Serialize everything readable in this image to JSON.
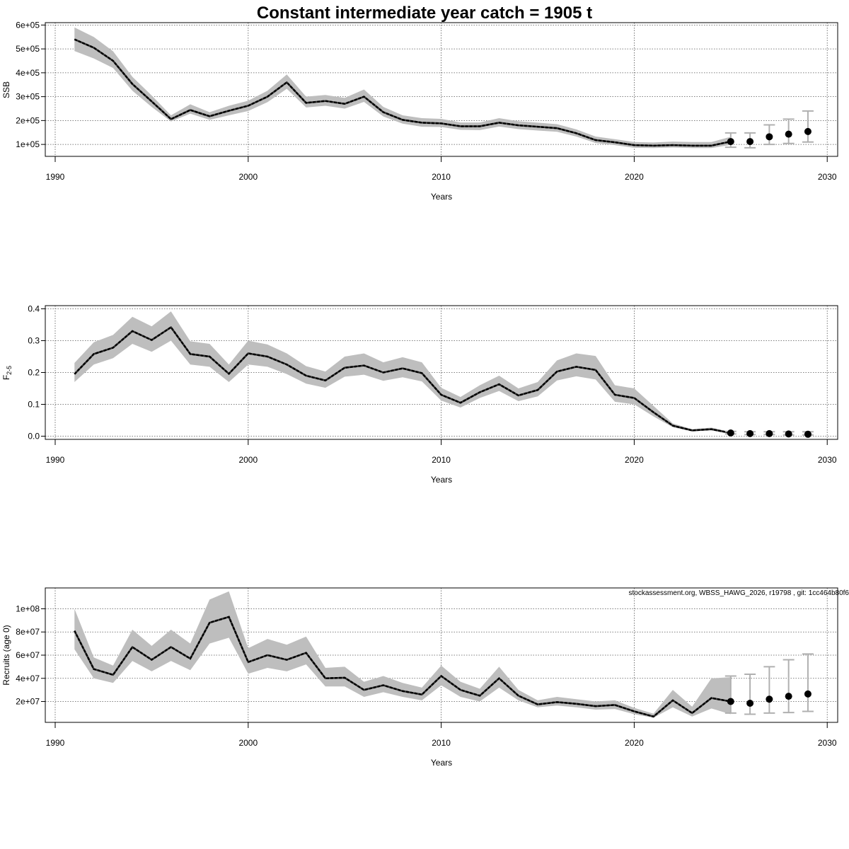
{
  "chart_data": [
    {
      "type": "line",
      "title": "Constant intermediate year catch = 1905 t",
      "xlabel": "Years",
      "ylabel": "SSB",
      "xlim": [
        1990,
        2030
      ],
      "ylim": [
        50000,
        610000
      ],
      "grid": true,
      "x_ticks": [
        1990,
        2000,
        2010,
        2020,
        2030
      ],
      "x_tick_labels": [
        "1990",
        "2000",
        "2010",
        "2020",
        "2030"
      ],
      "y_ticks": [
        100000,
        200000,
        300000,
        400000,
        500000,
        600000
      ],
      "y_tick_labels": [
        "1e+05",
        "2e+05",
        "3e+05",
        "4e+05",
        "5e+05",
        "6e+05"
      ],
      "years": [
        1991,
        1992,
        1993,
        1994,
        1995,
        1996,
        1997,
        1998,
        1999,
        2000,
        2001,
        2002,
        2003,
        2004,
        2005,
        2006,
        2007,
        2008,
        2009,
        2010,
        2011,
        2012,
        2013,
        2014,
        2015,
        2016,
        2017,
        2018,
        2019,
        2020,
        2021,
        2022,
        2023,
        2024,
        2025
      ],
      "estimate": [
        540000,
        505000,
        450000,
        353000,
        280000,
        206000,
        244000,
        218000,
        241000,
        262000,
        300000,
        360000,
        274000,
        282000,
        270000,
        300000,
        235000,
        203000,
        191000,
        188000,
        176000,
        176000,
        191000,
        180000,
        174000,
        168000,
        147000,
        118000,
        109000,
        97000,
        95000,
        97000,
        95000,
        95000,
        112000
      ],
      "ci_low": [
        491000,
        460000,
        420000,
        325000,
        257000,
        196000,
        229000,
        203000,
        222000,
        240000,
        277000,
        333000,
        255000,
        262000,
        250000,
        278000,
        217000,
        187000,
        174000,
        173000,
        161000,
        160000,
        175000,
        164000,
        158000,
        153000,
        133000,
        106000,
        97000,
        86000,
        85000,
        87000,
        85000,
        85000,
        98000
      ],
      "ci_high": [
        590000,
        550000,
        490000,
        383000,
        305000,
        222000,
        268000,
        235000,
        262000,
        283000,
        325000,
        393000,
        300000,
        307000,
        295000,
        330000,
        257000,
        222000,
        210000,
        207000,
        192000,
        192000,
        210000,
        197000,
        191000,
        185000,
        163000,
        133000,
        122000,
        110000,
        108000,
        112000,
        110000,
        110000,
        132000
      ],
      "forecast": {
        "years": [
          2025,
          2026,
          2027,
          2028,
          2029
        ],
        "median": [
          112000,
          112000,
          132000,
          143000,
          154000
        ],
        "low": [
          88000,
          86000,
          100000,
          104000,
          110000
        ],
        "high": [
          148000,
          148000,
          182000,
          206000,
          240000
        ]
      }
    },
    {
      "type": "line",
      "xlabel": "Years",
      "ylabel": "F",
      "ylabel_subscript": "2-5",
      "xlim": [
        1990,
        2030
      ],
      "ylim": [
        -0.01,
        0.41
      ],
      "grid": true,
      "x_ticks": [
        1990,
        2000,
        2010,
        2020,
        2030
      ],
      "x_tick_labels": [
        "1990",
        "2000",
        "2010",
        "2020",
        "2030"
      ],
      "y_ticks": [
        0,
        0.1,
        0.2,
        0.3,
        0.4
      ],
      "y_tick_labels": [
        "0.0",
        "0.1",
        "0.2",
        "0.3",
        "0.4"
      ],
      "years": [
        1991,
        1992,
        1993,
        1994,
        1995,
        1996,
        1997,
        1998,
        1999,
        2000,
        2001,
        2002,
        2003,
        2004,
        2005,
        2006,
        2007,
        2008,
        2009,
        2010,
        2011,
        2012,
        2013,
        2014,
        2015,
        2016,
        2017,
        2018,
        2019,
        2020,
        2021,
        2022,
        2023,
        2024,
        2025
      ],
      "estimate": [
        0.195,
        0.258,
        0.278,
        0.33,
        0.302,
        0.342,
        0.258,
        0.25,
        0.196,
        0.26,
        0.25,
        0.225,
        0.19,
        0.175,
        0.215,
        0.222,
        0.2,
        0.213,
        0.198,
        0.13,
        0.105,
        0.138,
        0.163,
        0.128,
        0.145,
        0.203,
        0.218,
        0.208,
        0.13,
        0.12,
        0.075,
        0.033,
        0.018,
        0.022,
        0.01
      ],
      "ci_low": [
        0.17,
        0.225,
        0.245,
        0.29,
        0.265,
        0.3,
        0.225,
        0.218,
        0.17,
        0.225,
        0.218,
        0.195,
        0.165,
        0.152,
        0.187,
        0.193,
        0.174,
        0.185,
        0.172,
        0.112,
        0.09,
        0.12,
        0.142,
        0.11,
        0.125,
        0.175,
        0.188,
        0.178,
        0.108,
        0.1,
        0.062,
        0.028,
        0.015,
        0.018,
        0.007
      ],
      "ci_high": [
        0.23,
        0.295,
        0.318,
        0.375,
        0.345,
        0.392,
        0.298,
        0.29,
        0.225,
        0.3,
        0.288,
        0.26,
        0.22,
        0.203,
        0.25,
        0.26,
        0.232,
        0.248,
        0.232,
        0.152,
        0.123,
        0.16,
        0.19,
        0.15,
        0.17,
        0.238,
        0.26,
        0.252,
        0.16,
        0.15,
        0.095,
        0.04,
        0.022,
        0.027,
        0.013
      ],
      "forecast": {
        "years": [
          2025,
          2026,
          2027,
          2028,
          2029
        ],
        "median": [
          0.01,
          0.008,
          0.008,
          0.007,
          0.006
        ],
        "low": [
          0.007,
          0.005,
          0.005,
          0.004,
          0.004
        ],
        "high": [
          0.015,
          0.014,
          0.014,
          0.014,
          0.014
        ]
      }
    },
    {
      "type": "line",
      "xlabel": "Years",
      "ylabel": "Recruits (age 0)",
      "xlim": [
        1990,
        2030
      ],
      "ylim": [
        2000000,
        118000000
      ],
      "grid": true,
      "x_ticks": [
        1990,
        2000,
        2010,
        2020,
        2030
      ],
      "x_tick_labels": [
        "1990",
        "2000",
        "2010",
        "2020",
        "2030"
      ],
      "y_ticks": [
        20000000,
        40000000,
        60000000,
        80000000,
        100000000
      ],
      "y_tick_labels": [
        "2e+07",
        "4e+07",
        "6e+07",
        "8e+07",
        "1e+08"
      ],
      "years": [
        1991,
        1992,
        1993,
        1994,
        1995,
        1996,
        1997,
        1998,
        1999,
        2000,
        2001,
        2002,
        2003,
        2004,
        2005,
        2006,
        2007,
        2008,
        2009,
        2010,
        2011,
        2012,
        2013,
        2014,
        2015,
        2016,
        2017,
        2018,
        2019,
        2020,
        2021,
        2022,
        2023,
        2024,
        2025
      ],
      "estimate": [
        81000000.0,
        48000000.0,
        43000000.0,
        67000000.0,
        56000000.0,
        67000000.0,
        57000000.0,
        88000000.0,
        93000000.0,
        54000000.0,
        60000000.0,
        56000000.0,
        62000000.0,
        40000000.0,
        40500000.0,
        30000000.0,
        34000000.0,
        29000000.0,
        26000000.0,
        42000000.0,
        30000000.0,
        25000000.0,
        40000000.0,
        25000000.0,
        17500000.0,
        19500000.0,
        18000000.0,
        16000000.0,
        17000000.0,
        11500000.0,
        7000000.0,
        21000000.0,
        10000000.0,
        23000000.0,
        20000000.0
      ],
      "ci_low": [
        65000000.0,
        40000000.0,
        36000000.0,
        55000000.0,
        46000000.0,
        55000000.0,
        47000000.0,
        70000000.0,
        75000000.0,
        44000000.0,
        49000000.0,
        46000000.0,
        52000000.0,
        33000000.0,
        33000000.0,
        24000000.0,
        28000000.0,
        24000000.0,
        21000000.0,
        34000000.0,
        24000000.0,
        20000000.0,
        32000000.0,
        21000000.0,
        15000000.0,
        16500000.0,
        15000000.0,
        13000000.0,
        13500000.0,
        9000000.0,
        6000000.0,
        15000000.0,
        7000000.0,
        14000000.0,
        9000000.0
      ],
      "ci_high": [
        100000000.0,
        58000000.0,
        51000000.0,
        82000000.0,
        68000000.0,
        82000000.0,
        70000000.0,
        108000000.0,
        115000000.0,
        66000000.0,
        74000000.0,
        69000000.0,
        76000000.0,
        49000000.0,
        50000000.0,
        37000000.0,
        42000000.0,
        36000000.0,
        32000000.0,
        51000000.0,
        37000000.0,
        31000000.0,
        50000000.0,
        30000000.0,
        21000000.0,
        24000000.0,
        22000000.0,
        20000000.0,
        21000000.0,
        14500000.0,
        9500000.0,
        30000000.0,
        15500000.0,
        40000000.0,
        41000000.0
      ],
      "forecast": {
        "years": [
          2025,
          2026,
          2027,
          2028,
          2029
        ],
        "median": [
          20000000.0,
          18500000.0,
          22000000.0,
          24500000.0,
          26500000.0
        ],
        "low": [
          10000000.0,
          9000000.0,
          10000000.0,
          10500000.0,
          11500000.0
        ],
        "high": [
          42000000.0,
          43500000.0,
          50000000.0,
          56000000.0,
          61000000.0
        ]
      },
      "annotation": "stockassessment.org, WBSS_HAWG_2026, r19798 , git: 1cc464b80f6"
    }
  ],
  "colors": {
    "band": "#bebebe",
    "line": "#000000",
    "errorbar": "#b0b0b0",
    "grid": "#555555"
  }
}
